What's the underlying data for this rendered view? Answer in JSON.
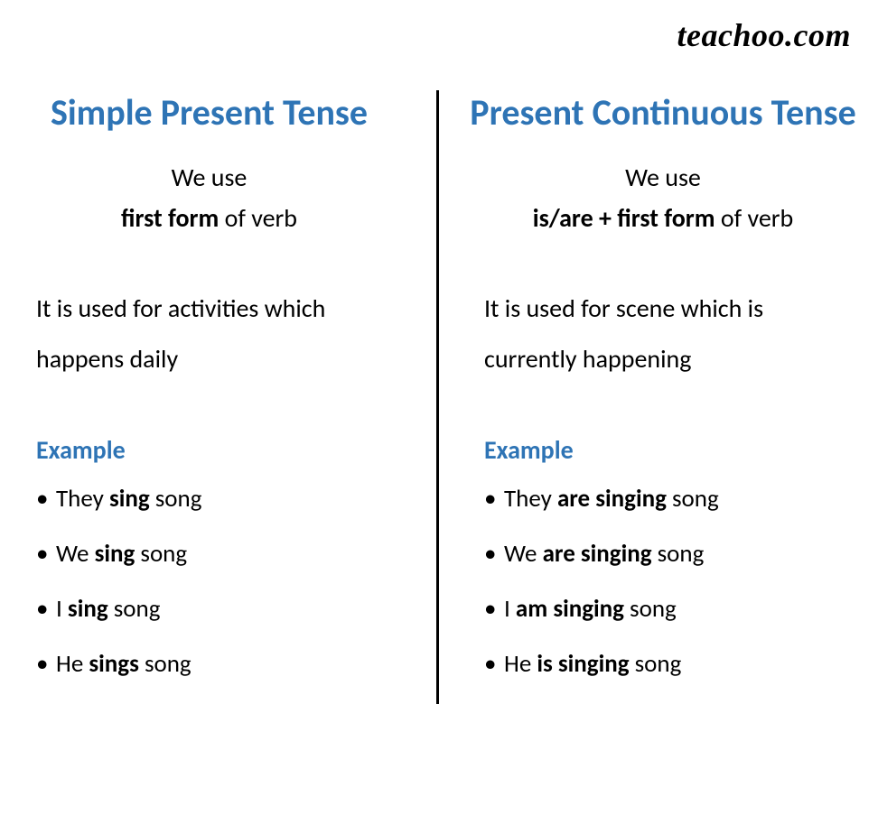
{
  "brand": "teachoo.com",
  "colors": {
    "heading_blue": "#2e74b5",
    "text_black": "#000000",
    "background": "#ffffff",
    "divider": "#000000"
  },
  "typography": {
    "title_fontsize": 40,
    "body_fontsize": 28,
    "brand_fontsize": 36,
    "title_weight": "bold"
  },
  "left": {
    "title": "Simple Present Tense",
    "we_use": "We use",
    "form_bold": "first form",
    "form_rest": " of verb",
    "usage": "It is used for activities which happens daily",
    "example_label": "Example",
    "examples": [
      {
        "pre": "They ",
        "bold": "sing",
        "post": " song"
      },
      {
        "pre": "We ",
        "bold": "sing",
        "post": " song"
      },
      {
        "pre": "I ",
        "bold": "sing",
        "post": " song"
      },
      {
        "pre": "He ",
        "bold": "sings",
        "post": " song"
      }
    ]
  },
  "right": {
    "title": "Present Continuous Tense",
    "we_use": "We use",
    "form_bold": "is/are + first form",
    "form_rest": " of verb",
    "usage": "It is used for scene which is currently happening",
    "example_label": "Example",
    "examples": [
      {
        "pre": "They ",
        "bold": "are singing",
        "post": " song"
      },
      {
        "pre": "We ",
        "bold": "are singing",
        "post": " song"
      },
      {
        "pre": "I ",
        "bold": "am singing",
        "post": " song"
      },
      {
        "pre": "He ",
        "bold": "is singing",
        "post": " song"
      }
    ]
  }
}
